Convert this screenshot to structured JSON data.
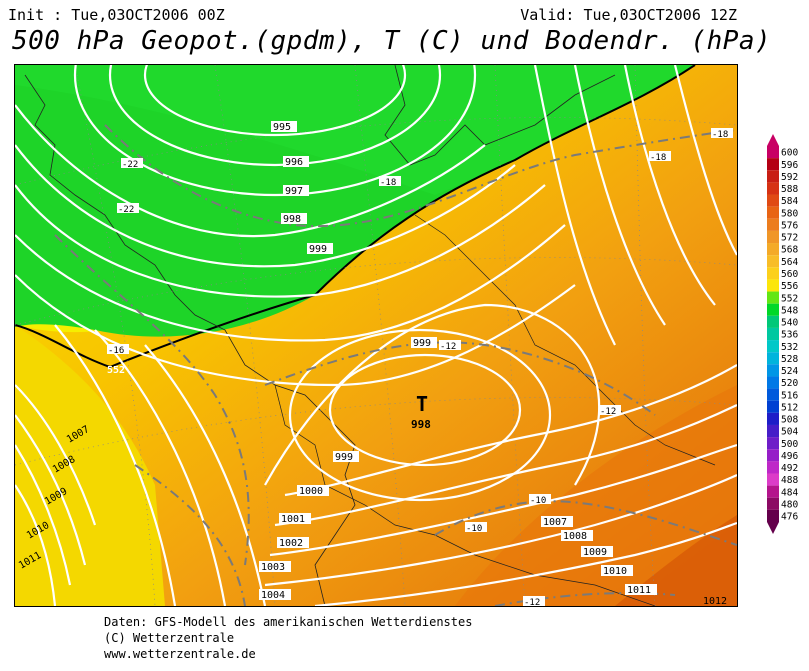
{
  "header": {
    "init": "Init : Tue,03OCT2006 00Z",
    "valid": "Valid: Tue,03OCT2006 12Z",
    "title": "500 hPa Geopot.(gpdm), T (C) und Bodendr. (hPa)"
  },
  "map": {
    "pressure_labels": [
      "995",
      "996",
      "997",
      "998",
      "999",
      "999",
      "999",
      "1000",
      "1001",
      "1002",
      "1003",
      "1004",
      "1007",
      "1008",
      "1009",
      "1010",
      "1011",
      "1007",
      "1008",
      "1009",
      "1010",
      "1011",
      "1012"
    ],
    "low_center": {
      "symbol": "T",
      "value": "998"
    },
    "temperature_labels": [
      "-22",
      "-22",
      "-18",
      "-16",
      "-18",
      "-18",
      "-12",
      "-12",
      "-10",
      "-10",
      "-12"
    ],
    "geopotential_label": "552"
  },
  "legend": {
    "levels": [
      "600",
      "596",
      "592",
      "588",
      "584",
      "580",
      "576",
      "572",
      "568",
      "564",
      "560",
      "556",
      "552",
      "548",
      "540",
      "536",
      "532",
      "528",
      "524",
      "520",
      "516",
      "512",
      "508",
      "504",
      "500",
      "496",
      "492",
      "488",
      "484",
      "480",
      "476"
    ],
    "colors": [
      "#c80064",
      "#b40014",
      "#c81e14",
      "#d63214",
      "#e04a14",
      "#e86414",
      "#ec7d1e",
      "#f09628",
      "#f4aa28",
      "#f8bd28",
      "#fcd01c",
      "#fce60a",
      "#64e614",
      "#00d828",
      "#00c878",
      "#00c8a0",
      "#00c8c8",
      "#00b4dc",
      "#0096e6",
      "#0078e6",
      "#005adc",
      "#0040d2",
      "#1e1ec8",
      "#461ec8",
      "#6e1ec8",
      "#961ec8",
      "#be28c8",
      "#dc3cc8",
      "#b4148c",
      "#8c0a64",
      "#64004b"
    ]
  },
  "credits": {
    "line1": "Daten: GFS-Modell des amerikanischen Wetterdienstes",
    "line2": "(C) Wetterzentrale",
    "line3": "www.wetterzentrale.de"
  }
}
